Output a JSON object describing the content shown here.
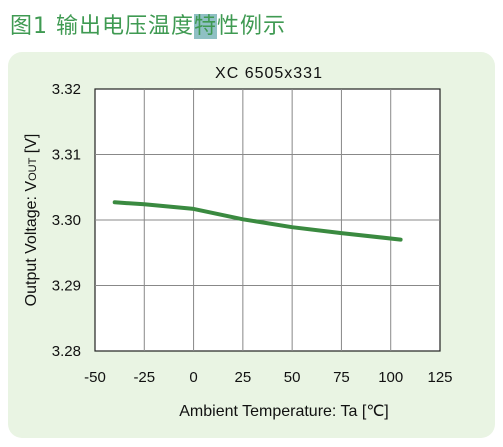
{
  "heading": {
    "before": "图1 输出电压温度",
    "highlight": "特",
    "after": "性例示"
  },
  "colors": {
    "heading": "#3f9a52",
    "panel_bg": "#e9f4e3",
    "line": "#3a8a40",
    "grid": "#888888"
  },
  "chart_data": {
    "type": "line",
    "title": "XC 6505x331",
    "xlabel": "Ambient Temperature: Ta [℃]",
    "ylabel": {
      "pre": "Output Voltage: V",
      "sub": "OUT",
      "post": " [V]"
    },
    "xlim": [
      -50,
      125
    ],
    "ylim": [
      3.28,
      3.32
    ],
    "xticks": [
      -50,
      -25,
      0,
      25,
      50,
      75,
      100,
      125
    ],
    "yticks": [
      3.28,
      3.29,
      3.3,
      3.31,
      3.32
    ],
    "xtick_labels": [
      "-50",
      "-25",
      "0",
      "25",
      "50",
      "75",
      "100",
      "125"
    ],
    "ytick_labels": [
      "3.28",
      "3.29",
      "3.30",
      "3.31",
      "3.32"
    ],
    "grid": true,
    "series": [
      {
        "x": [
          -40,
          -25,
          0,
          25,
          50,
          75,
          105
        ],
        "y": [
          3.3027,
          3.3024,
          3.3017,
          3.3001,
          3.2989,
          3.298,
          3.297
        ]
      }
    ]
  }
}
